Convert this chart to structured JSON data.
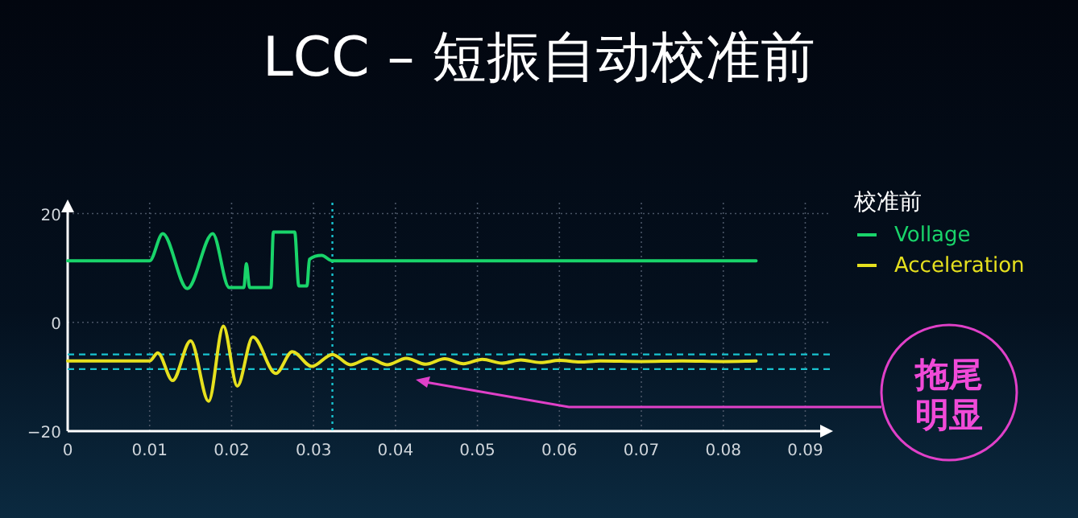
{
  "chart_data": {
    "type": "line",
    "title": "LCC – 短振自动校准前",
    "legend_title": "校准前",
    "legend": "right",
    "grid": true,
    "marker": "none",
    "line_style": "solid",
    "xlim": [
      0,
      0.093
    ],
    "ylim": [
      -20,
      22
    ],
    "xticks": [
      0,
      0.01,
      0.02,
      0.03,
      0.04,
      0.05,
      0.06,
      0.07,
      0.08,
      0.09
    ],
    "yticks": [
      -20,
      0,
      20
    ],
    "series": [
      {
        "name": "Vollage",
        "color": "#19d46a",
        "x": [
          0,
          0.01,
          0.0116,
          0.0146,
          0.0177,
          0.0197,
          0.0215,
          0.0218,
          0.0222,
          0.0248,
          0.0251,
          0.0277,
          0.0282,
          0.0292,
          0.0295,
          0.031,
          0.0323,
          0.084
        ],
        "values": [
          11.3,
          11.3,
          16.3,
          6.2,
          16.3,
          6.4,
          6.4,
          10.8,
          6.4,
          6.4,
          16.6,
          16.6,
          6.7,
          6.7,
          11.6,
          12.3,
          11.3,
          11.3
        ]
      },
      {
        "name": "Acceleration",
        "color": "#e6e01e",
        "x": [
          0,
          0.01,
          0.011,
          0.0128,
          0.015,
          0.0172,
          0.019,
          0.0207,
          0.0226,
          0.0254,
          0.0274,
          0.0298,
          0.0323,
          0.0345,
          0.0368,
          0.039,
          0.0413,
          0.0437,
          0.046,
          0.0483,
          0.0506,
          0.053,
          0.0553,
          0.0577,
          0.06,
          0.0625,
          0.065,
          0.07,
          0.075,
          0.08,
          0.084
        ],
        "values": [
          -7.1,
          -7.1,
          -5.6,
          -10.7,
          -3.4,
          -14.5,
          -0.7,
          -11.7,
          -2.7,
          -9.4,
          -5.4,
          -8.1,
          -5.9,
          -7.8,
          -6.6,
          -7.8,
          -6.6,
          -7.7,
          -6.7,
          -7.6,
          -6.8,
          -7.5,
          -6.9,
          -7.4,
          -7.0,
          -7.3,
          -7.1,
          -7.2,
          -7.1,
          -7.2,
          -7.1
        ]
      }
    ],
    "ref_lines": [
      {
        "axis": "x",
        "value": 0.0323,
        "color": "#19c3d0",
        "line_style": "dotted"
      },
      {
        "axis": "y",
        "value": -5.9,
        "color": "#19c3d0",
        "line_style": "dashed"
      },
      {
        "axis": "y",
        "value": -8.6,
        "color": "#19c3d0",
        "line_style": "dashed"
      }
    ],
    "annotations": [
      "拖尾明显"
    ]
  }
}
